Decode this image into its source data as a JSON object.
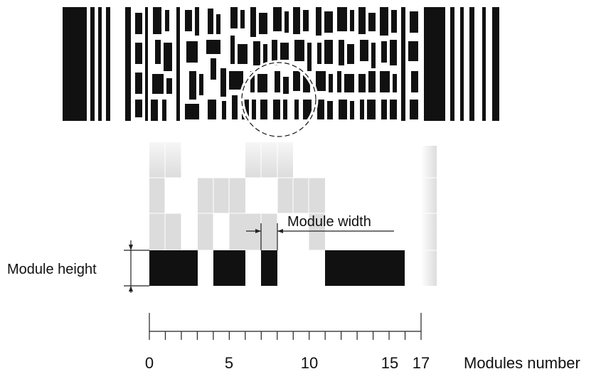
{
  "labels": {
    "module_width": "Module width",
    "module_height": "Module height",
    "modules_number": "Modules number"
  },
  "axis": {
    "ticks": [
      "0",
      "5",
      "10",
      "15",
      "17"
    ],
    "min": 0,
    "max": 17
  },
  "colors": {
    "ink": "#111111",
    "ghost": "#dcdcdc",
    "line": "#222222"
  }
}
